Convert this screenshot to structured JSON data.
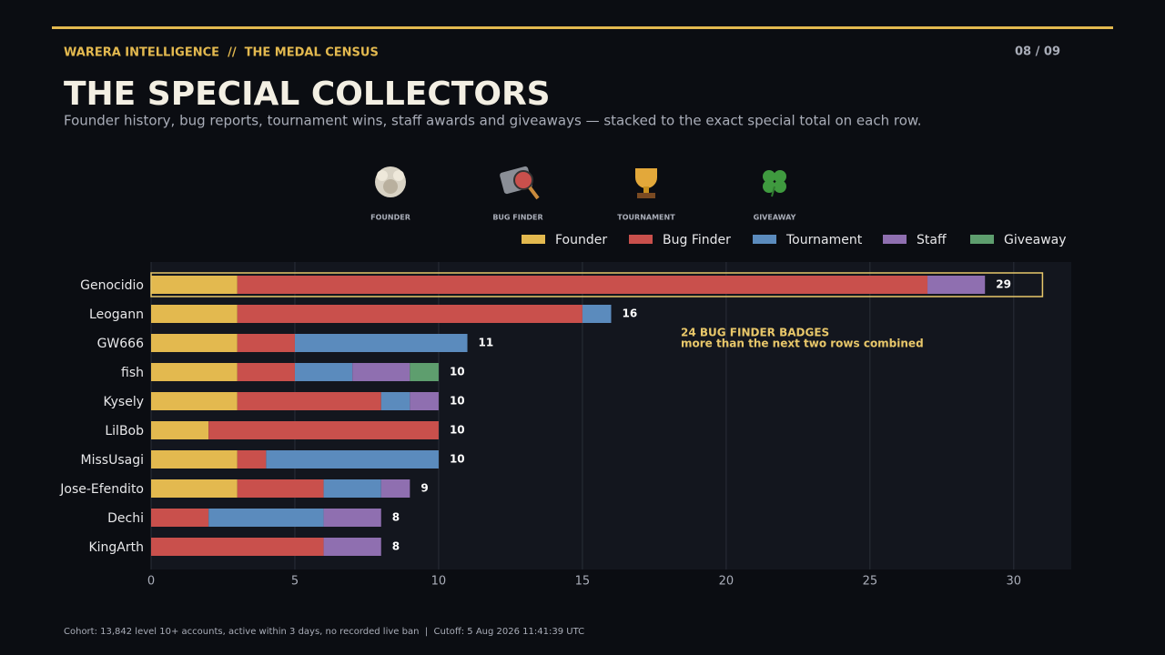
{
  "header": {
    "kicker": "WARERA INTELLIGENCE  //  THE MEDAL CENSUS",
    "page": "08 / 09",
    "title": "THE SPECIAL COLLECTORS",
    "subtitle": "Founder history, bug reports, tournament wins, staff awards and giveaways — stacked to the exact special total on each row."
  },
  "badges": [
    "FOUNDER",
    "BUG FINDER",
    "TOURNAMENT",
    "GIVEAWAY"
  ],
  "chart_data": {
    "type": "stacked-bar-horizontal",
    "categories": [
      "Genocidio",
      "Leogann",
      "GW666",
      "fish",
      "Kysely",
      "LilBob",
      "MissUsagi",
      "Jose-Efendito",
      "Dechi",
      "KingArth"
    ],
    "series": [
      {
        "name": "Founder",
        "color": "#e3b94f",
        "values": [
          3,
          3,
          3,
          3,
          3,
          2,
          3,
          3,
          0,
          0
        ]
      },
      {
        "name": "Bug Finder",
        "color": "#c9504c",
        "values": [
          24,
          12,
          2,
          2,
          5,
          8,
          1,
          3,
          2,
          6
        ]
      },
      {
        "name": "Tournament",
        "color": "#5b8bbd",
        "values": [
          0,
          1,
          6,
          2,
          1,
          0,
          6,
          2,
          4,
          0
        ]
      },
      {
        "name": "Staff",
        "color": "#8f6fb0",
        "values": [
          2,
          0,
          0,
          2,
          1,
          0,
          0,
          1,
          2,
          2
        ]
      },
      {
        "name": "Giveaway",
        "color": "#5e9e6e",
        "values": [
          0,
          0,
          0,
          1,
          0,
          0,
          0,
          0,
          0,
          0
        ]
      }
    ],
    "totals": [
      29,
      16,
      11,
      10,
      10,
      10,
      10,
      9,
      8,
      8
    ],
    "xlim": [
      0,
      32
    ],
    "xticks": [
      0,
      5,
      10,
      15,
      20,
      25,
      30
    ],
    "grid": true,
    "legend": "top-right",
    "highlight_row": 0,
    "annotation": [
      "24 BUG FINDER BADGES",
      "more than the next two rows combined"
    ]
  },
  "footer": "Cohort: 13,842 level 10+ accounts, active within 3 days, no recorded live ban  |  Cutoff: 5 Aug 2026 11:41:39 UTC"
}
